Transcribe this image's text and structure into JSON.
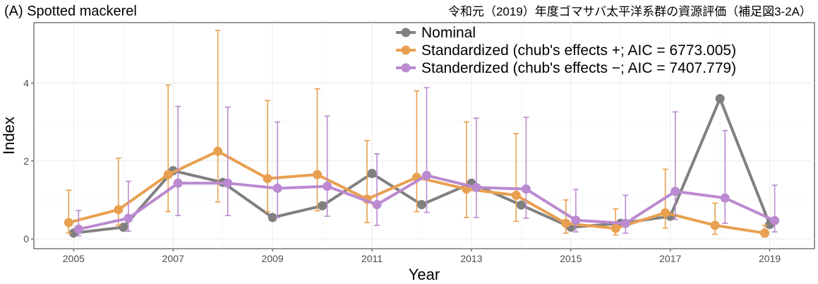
{
  "chart_data": {
    "type": "line",
    "title": "(A) Spotted mackerel",
    "source_note": "令和元（2019）年度ゴマサバ太平洋系群の資源評価（補足図3-2A）",
    "xlabel": "Year",
    "ylabel": "Index",
    "xlim": [
      2004.2,
      2019.9
    ],
    "ylim": [
      -0.25,
      5.55
    ],
    "x_ticks": [
      2005,
      2007,
      2009,
      2011,
      2013,
      2015,
      2017,
      2019
    ],
    "x_tick_labels": [
      "2005",
      "2007",
      "2009",
      "2011",
      "2013",
      "2015",
      "2017",
      "2019"
    ],
    "y_ticks": [
      0,
      2,
      4
    ],
    "y_tick_labels": [
      "0",
      "2",
      "4"
    ],
    "grid": true,
    "legend_position": "top-right",
    "x": [
      2005,
      2006,
      2007,
      2008,
      2009,
      2010,
      2011,
      2012,
      2013,
      2014,
      2015,
      2016,
      2017,
      2018,
      2019
    ],
    "series": [
      {
        "name": "Nominal",
        "color": "#808080",
        "offset": 0,
        "values": [
          0.15,
          0.3,
          1.75,
          1.45,
          0.55,
          0.85,
          1.68,
          0.88,
          1.43,
          0.87,
          0.3,
          0.4,
          0.58,
          3.6,
          0.37
        ],
        "error_bars": false
      },
      {
        "name": "Standardized (chub's effects +; AIC = 6773.005)",
        "color": "#E8A050",
        "offset": -0.1,
        "values": [
          0.42,
          0.75,
          1.65,
          2.25,
          1.55,
          1.65,
          1.02,
          1.58,
          1.28,
          1.12,
          0.4,
          0.27,
          0.67,
          0.35,
          0.15
        ],
        "lower": [
          0.15,
          0.35,
          0.7,
          0.95,
          0.7,
          0.72,
          0.42,
          0.7,
          0.55,
          0.45,
          0.15,
          0.1,
          0.28,
          0.12,
          0.05
        ],
        "upper": [
          1.25,
          2.07,
          3.95,
          5.35,
          3.55,
          3.85,
          2.52,
          3.8,
          3.0,
          2.7,
          1.0,
          0.77,
          1.79,
          0.92,
          0.35
        ],
        "error_bars": true
      },
      {
        "name": "Standerdized (chub's effects −; AIC = 7407.779)",
        "color": "#BB8AD0",
        "offset": 0.1,
        "values": [
          0.25,
          0.53,
          1.43,
          1.43,
          1.3,
          1.35,
          0.88,
          1.63,
          1.32,
          1.28,
          0.48,
          0.4,
          1.22,
          1.05,
          0.47
        ],
        "lower": [
          0.08,
          0.2,
          0.6,
          0.6,
          0.55,
          0.58,
          0.35,
          0.68,
          0.55,
          0.53,
          0.18,
          0.15,
          0.5,
          0.4,
          0.18
        ],
        "upper": [
          0.73,
          1.48,
          3.4,
          3.38,
          3.0,
          3.15,
          2.18,
          3.88,
          3.1,
          3.12,
          1.27,
          1.12,
          3.26,
          2.78,
          1.38
        ],
        "error_bars": true
      }
    ]
  }
}
